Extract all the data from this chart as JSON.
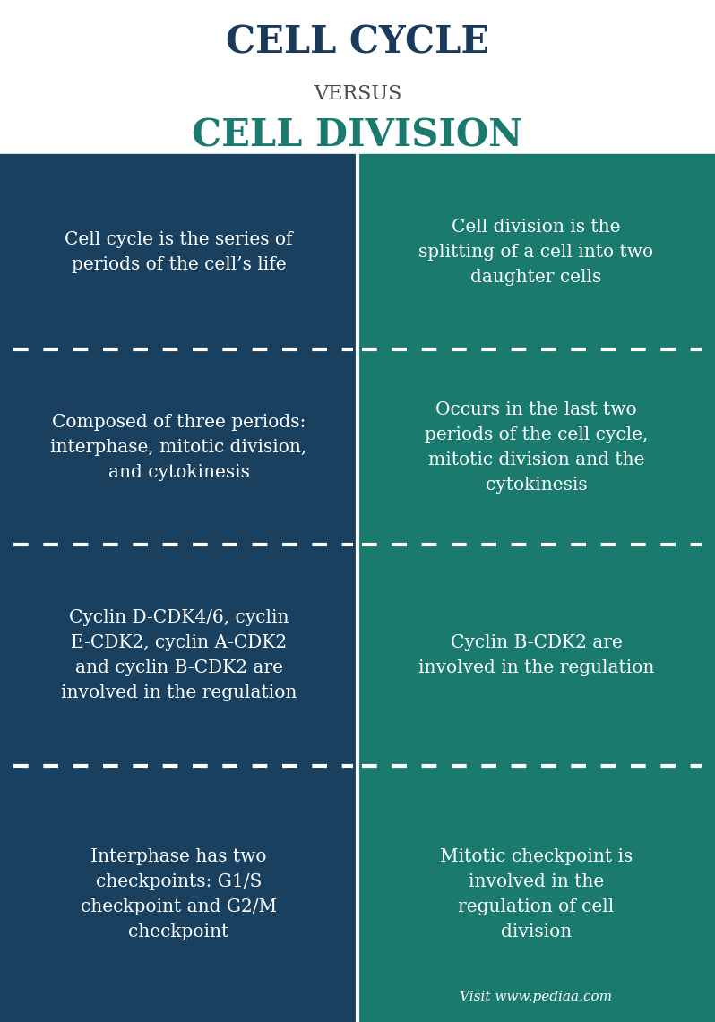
{
  "title_line1": "CELL CYCLE",
  "title_line2": "VERSUS",
  "title_line3": "CELL DIVISION",
  "title_color1": "#1a3a5c",
  "title_color2": "#4a4a4a",
  "title_color3": "#1a7a6e",
  "left_bg": "#1a4060",
  "right_bg": "#1a7a6e",
  "text_color": "#ffffff",
  "divider_color": "#ffffff",
  "background_color": "#ffffff",
  "left_col_texts": [
    "Cell cycle is the series of\nperiods of the cell’s life",
    "Composed of three periods:\ninterphase, mitotic division,\nand cytokinesis",
    "Cyclin D-CDK4/6, cyclin\nE-CDK2, cyclin A-CDK2\nand cyclin B-CDK2 are\ninvolved in the regulation",
    "Interphase has two\ncheckpoints: G1/S\ncheckpoint and G2/M\ncheckpoint"
  ],
  "right_col_texts": [
    "Cell division is the\nsplitting of a cell into two\ndaughter cells",
    "Occurs in the last two\nperiods of the cell cycle,\nmitotic division and the\ncytokinesis",
    "Cyclin B-CDK2 are\ninvolved in the regulation",
    "Mitotic checkpoint is\ninvolved in the\nregulation of cell\ndivision"
  ],
  "watermark": "Visit www.pediaa.com"
}
